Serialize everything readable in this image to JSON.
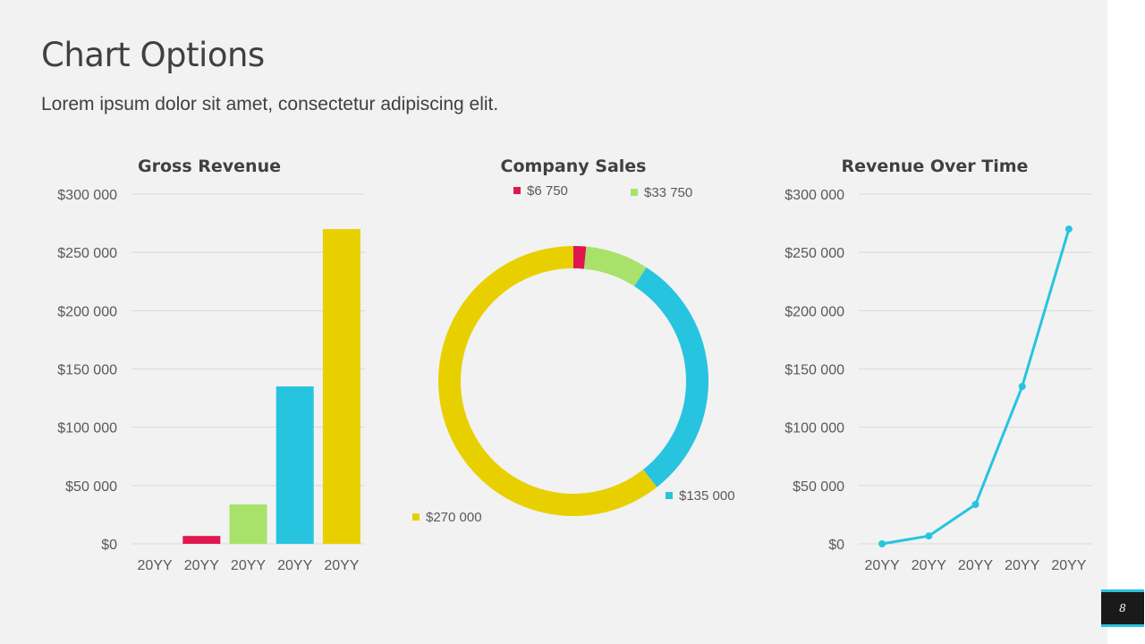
{
  "page": {
    "title": "Chart Options",
    "subtitle": "Lorem ipsum dolor sit amet, consectetur adipiscing elit.",
    "page_number": "8"
  },
  "chart_data": [
    {
      "type": "bar",
      "title": "Gross Revenue",
      "categories": [
        "20YY",
        "20YY",
        "20YY",
        "20YY",
        "20YY"
      ],
      "values": [
        0,
        6750,
        33750,
        135000,
        270000
      ],
      "colors": [
        "#e0174f",
        "#e0174f",
        "#a8e26a",
        "#27c4e0",
        "#e8d000"
      ],
      "ylim": [
        0,
        300000
      ],
      "yticks": [
        0,
        50000,
        100000,
        150000,
        200000,
        250000,
        300000
      ],
      "ytick_labels": [
        "$0",
        "$50 000",
        "$100 000",
        "$150 000",
        "$200 000",
        "$250 000",
        "$300 000"
      ],
      "grid": true
    },
    {
      "type": "pie",
      "title": "Company Sales",
      "slices": [
        {
          "label": "$6 750",
          "value": 6750,
          "color": "#e0174f"
        },
        {
          "label": "$33 750",
          "value": 33750,
          "color": "#a8e26a"
        },
        {
          "label": "$135 000",
          "value": 135000,
          "color": "#27c4e0"
        },
        {
          "label": "$270 000",
          "value": 270000,
          "color": "#e8d000"
        }
      ]
    },
    {
      "type": "line",
      "title": "Revenue Over Time",
      "categories": [
        "20YY",
        "20YY",
        "20YY",
        "20YY",
        "20YY"
      ],
      "values": [
        0,
        6750,
        33750,
        135000,
        270000
      ],
      "color": "#27c4e0",
      "ylim": [
        0,
        300000
      ],
      "yticks": [
        0,
        50000,
        100000,
        150000,
        200000,
        250000,
        300000
      ],
      "ytick_labels": [
        "$0",
        "$50 000",
        "$100 000",
        "$150 000",
        "$200 000",
        "$250 000",
        "$300 000"
      ],
      "grid": true
    }
  ]
}
